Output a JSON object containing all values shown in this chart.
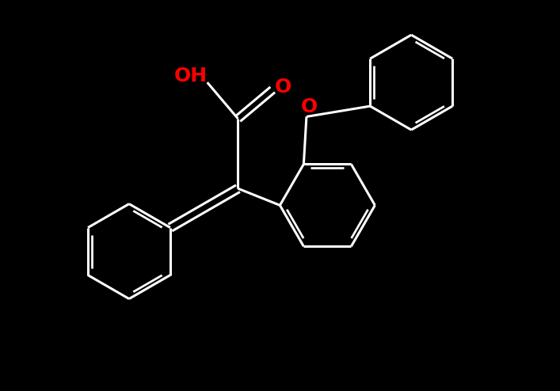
{
  "background_color": "#000000",
  "bond_color": "#ffffff",
  "heteroatom_color": "#ff0000",
  "lw": 2.2,
  "fs": 18,
  "r": 0.85,
  "off": 0.07,
  "xlim": [
    0,
    10
  ],
  "ylim": [
    0,
    7
  ]
}
